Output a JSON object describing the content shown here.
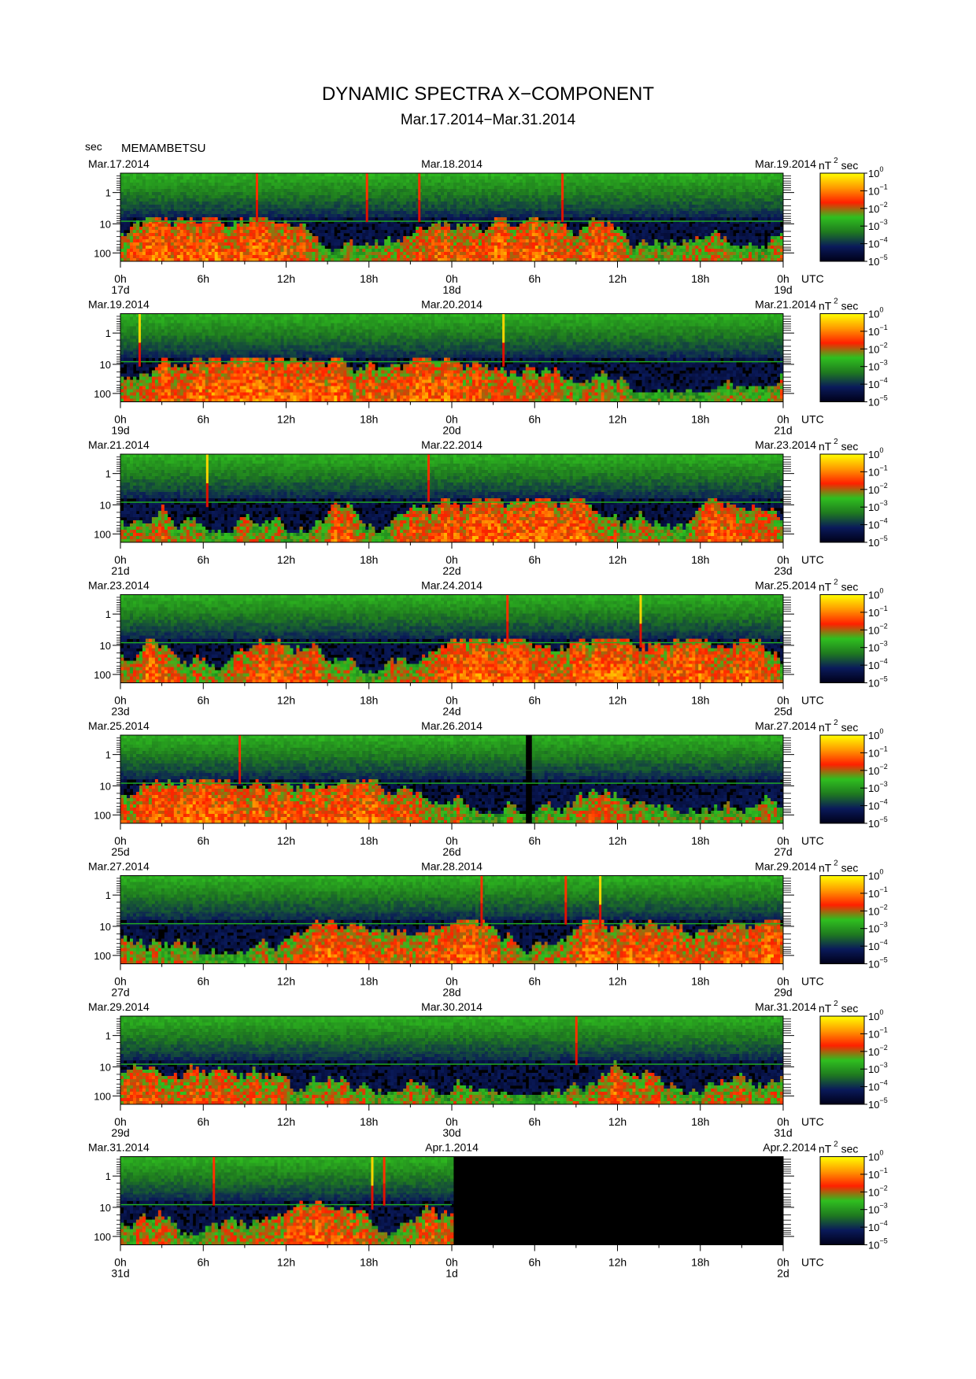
{
  "header": {
    "title": "DYNAMIC SPECTRA X−COMPONENT",
    "subtitle": "Mar.17.2014−Mar.31.2014",
    "y_unit": "sec",
    "station": "MEMAMBETSU"
  },
  "chart_data": {
    "type": "heatmap",
    "ylabel": "sec",
    "y_ticks": [
      "1",
      "10",
      "100"
    ],
    "x_tick_labels": [
      "0h",
      "6h",
      "12h",
      "18h",
      "0h",
      "6h",
      "12h",
      "18h",
      "0h"
    ],
    "x_unit": "UTC",
    "colorbar_unit": "nT",
    "colorbar_unit_exp": "2",
    "colorbar_unit_suffix": "sec",
    "colorbar_ticks": [
      {
        "base": "10",
        "exp": "0"
      },
      {
        "base": "10",
        "exp": "−1"
      },
      {
        "base": "10",
        "exp": "−2"
      },
      {
        "base": "10",
        "exp": "−3"
      },
      {
        "base": "10",
        "exp": "−4"
      },
      {
        "base": "10",
        "exp": "−5"
      }
    ],
    "colorscale": [
      "#000018",
      "#0a1a5a",
      "#1f7a1f",
      "#2fbf1f",
      "#ff2000",
      "#ff9900",
      "#ffff00"
    ],
    "panels": [
      {
        "date_left": "Mar.17.2014",
        "date_mid": "Mar.18.2014",
        "date_right": "Mar.19.2014",
        "day_labels": [
          "17d",
          "18d",
          "19d"
        ],
        "data_fraction": 1.0,
        "spikes": [
          {
            "t": 0.206,
            "i": 0.7
          },
          {
            "t": 0.372,
            "i": 0.7
          },
          {
            "t": 0.451,
            "i": 0.7
          },
          {
            "t": 0.667,
            "i": 0.7
          }
        ]
      },
      {
        "date_left": "Mar.19.2014",
        "date_mid": "Mar.20.2014",
        "date_right": "Mar.21.2014",
        "day_labels": [
          "19d",
          "20d",
          "21d"
        ],
        "data_fraction": 1.0,
        "spikes": [
          {
            "t": 0.029,
            "i": 1.0
          },
          {
            "t": 0.578,
            "i": 1.0
          }
        ]
      },
      {
        "date_left": "Mar.21.2014",
        "date_mid": "Mar.22.2014",
        "date_right": "Mar.23.2014",
        "day_labels": [
          "21d",
          "22d",
          "23d"
        ],
        "data_fraction": 1.0,
        "spikes": [
          {
            "t": 0.131,
            "i": 1.0
          },
          {
            "t": 0.465,
            "i": 0.6
          }
        ]
      },
      {
        "date_left": "Mar.23.2014",
        "date_mid": "Mar.24.2014",
        "date_right": "Mar.25.2014",
        "day_labels": [
          "23d",
          "24d",
          "25d"
        ],
        "data_fraction": 1.0,
        "spikes": [
          {
            "t": 0.584,
            "i": 0.7
          },
          {
            "t": 0.785,
            "i": 1.0
          }
        ]
      },
      {
        "date_left": "Mar.25.2014",
        "date_mid": "Mar.26.2014",
        "date_right": "Mar.27.2014",
        "day_labels": [
          "25d",
          "26d",
          "27d"
        ],
        "data_fraction": 1.0,
        "gap": {
          "start": 0.609,
          "end": 0.62
        },
        "spikes": [
          {
            "t": 0.18,
            "i": 0.7
          }
        ]
      },
      {
        "date_left": "Mar.27.2014",
        "date_mid": "Mar.28.2014",
        "date_right": "Mar.29.2014",
        "day_labels": [
          "27d",
          "28d",
          "29d"
        ],
        "data_fraction": 1.0,
        "spikes": [
          {
            "t": 0.545,
            "i": 0.8
          },
          {
            "t": 0.672,
            "i": 0.7
          },
          {
            "t": 0.724,
            "i": 1.0
          }
        ]
      },
      {
        "date_left": "Mar.29.2014",
        "date_mid": "Mar.30.2014",
        "date_right": "Mar.31.2014",
        "day_labels": [
          "29d",
          "30d",
          "31d"
        ],
        "data_fraction": 1.0,
        "spikes": [
          {
            "t": 0.688,
            "i": 0.7
          }
        ]
      },
      {
        "date_left": "Mar.31.2014",
        "date_mid": "Apr.1.2014",
        "date_right": "Apr.2.2014",
        "day_labels": [
          "31d",
          "1d",
          "2d"
        ],
        "data_fraction": 0.5,
        "spikes": [
          {
            "t": 0.141,
            "i": 0.7
          },
          {
            "t": 0.38,
            "i": 1.0
          },
          {
            "t": 0.398,
            "i": 0.7
          }
        ]
      }
    ]
  }
}
